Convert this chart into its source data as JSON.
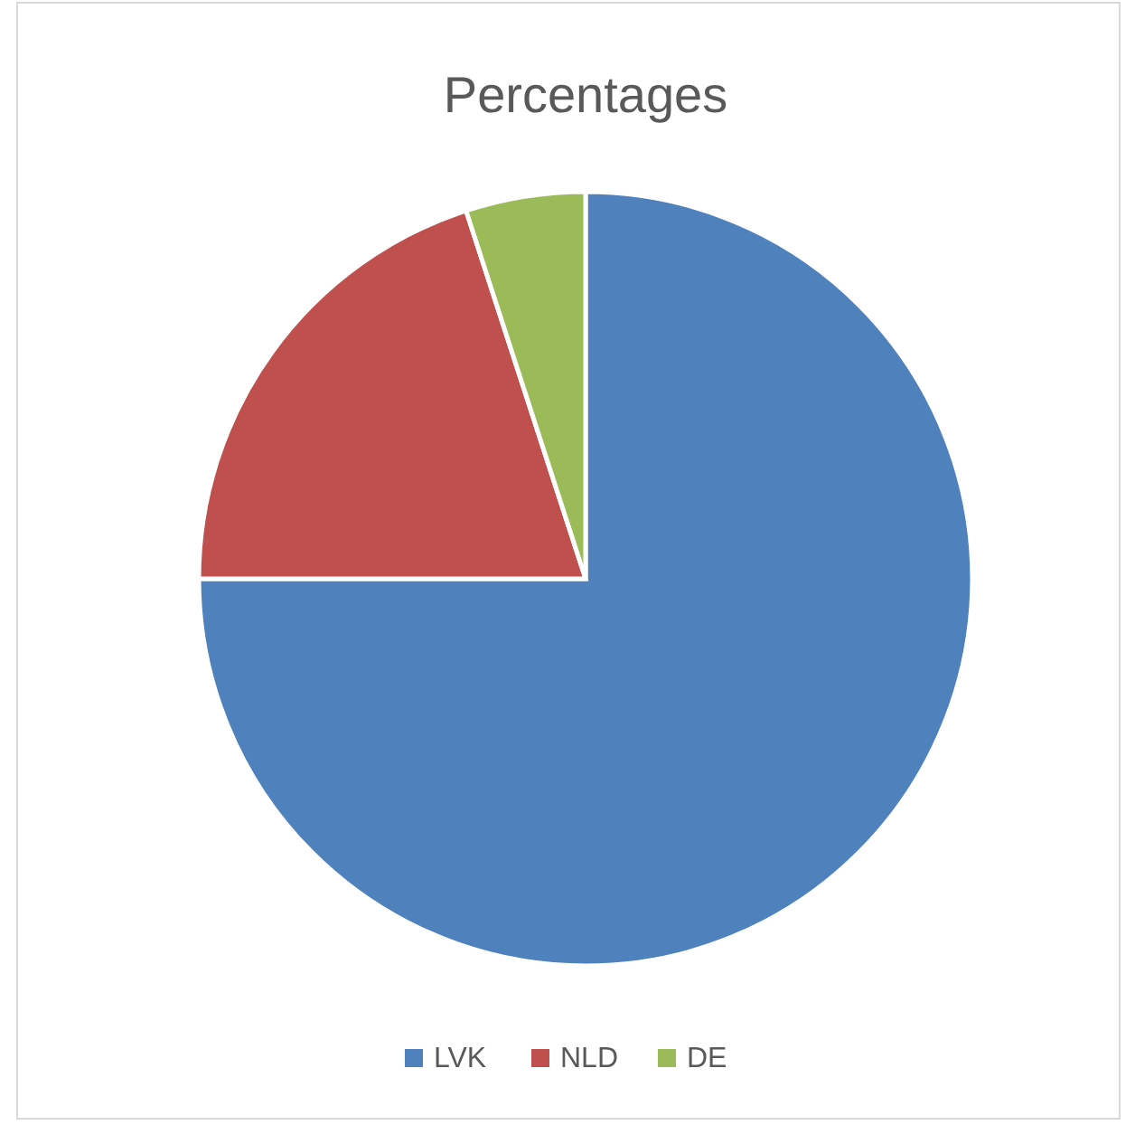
{
  "chart_data": {
    "type": "pie",
    "title": "Percentages",
    "categories": [
      "LVK",
      "NLD",
      "DE"
    ],
    "values": [
      75,
      20,
      5
    ],
    "colors": [
      "#4f81bd",
      "#c0504d",
      "#9bbb59"
    ],
    "legend": "bottom"
  }
}
